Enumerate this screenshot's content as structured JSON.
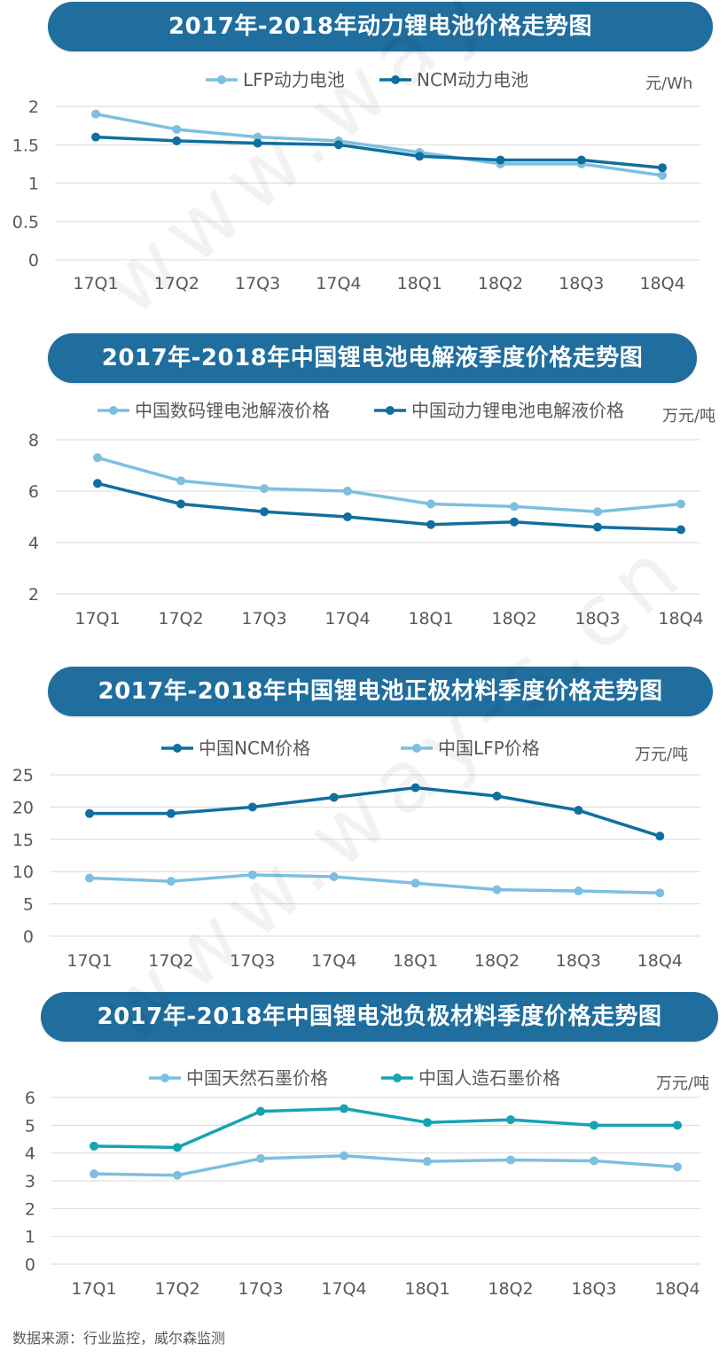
{
  "source": "数据来源：行业监控，威尔森监测",
  "watermark": "www.way-s.cn",
  "colors": {
    "title_bg": "#1f6e9e",
    "light": "#7dbfe0",
    "dark": "#0f6f9f",
    "teal": "#17a3b4",
    "grid": "#d9d9d9"
  },
  "chart_data": [
    {
      "type": "line",
      "title": "2017年-2018年动力锂电池价格走势图",
      "unit": "元/Wh",
      "categories": [
        "17Q1",
        "17Q2",
        "17Q3",
        "17Q4",
        "18Q1",
        "18Q2",
        "18Q3",
        "18Q4"
      ],
      "yticks": [
        "0",
        "0.5",
        "1",
        "1.5",
        "2"
      ],
      "ylim": [
        0,
        2
      ],
      "grid": true,
      "legend_position": "top",
      "series": [
        {
          "name": "LFP动力电池",
          "color": "#7dbfe0",
          "values": [
            1.9,
            1.7,
            1.6,
            1.55,
            1.4,
            1.25,
            1.25,
            1.1
          ]
        },
        {
          "name": "NCM动力电池",
          "color": "#0f6f9f",
          "values": [
            1.6,
            1.55,
            1.52,
            1.5,
            1.35,
            1.3,
            1.3,
            1.2
          ]
        }
      ]
    },
    {
      "type": "line",
      "title": "2017年-2018年中国锂电池电解液季度价格走势图",
      "unit": "万元/吨",
      "categories": [
        "17Q1",
        "17Q2",
        "17Q3",
        "17Q4",
        "18Q1",
        "18Q2",
        "18Q3",
        "18Q4"
      ],
      "yticks": [
        "2",
        "4",
        "6",
        "8"
      ],
      "ylim": [
        2,
        8
      ],
      "grid": true,
      "legend_position": "top",
      "series": [
        {
          "name": "中国数码锂电池解液价格",
          "color": "#7dbfe0",
          "values": [
            7.3,
            6.4,
            6.1,
            6.0,
            5.5,
            5.4,
            5.2,
            5.5
          ]
        },
        {
          "name": "中国动力锂电池电解液价格",
          "color": "#0f6f9f",
          "values": [
            6.3,
            5.5,
            5.2,
            5.0,
            4.7,
            4.8,
            4.6,
            4.5
          ]
        }
      ]
    },
    {
      "type": "line",
      "title": "2017年-2018年中国锂电池正极材料季度价格走势图",
      "unit": "万元/吨",
      "categories": [
        "17Q1",
        "17Q2",
        "17Q3",
        "17Q4",
        "18Q1",
        "18Q2",
        "18Q3",
        "18Q4"
      ],
      "yticks": [
        "0",
        "5",
        "10",
        "15",
        "20",
        "25"
      ],
      "ylim": [
        0,
        25
      ],
      "grid": true,
      "legend_position": "top",
      "series": [
        {
          "name": "中国NCM价格",
          "color": "#0f6f9f",
          "values": [
            19,
            19,
            20,
            21.5,
            23,
            21.7,
            19.5,
            15.5
          ]
        },
        {
          "name": "中国LFP价格",
          "color": "#7dbfe0",
          "values": [
            9,
            8.5,
            9.5,
            9.2,
            8.2,
            7.2,
            7.0,
            6.7
          ]
        }
      ]
    },
    {
      "type": "line",
      "title": "2017年-2018年中国锂电池负极材料季度价格走势图",
      "unit": "万元/吨",
      "categories": [
        "17Q1",
        "17Q2",
        "17Q3",
        "17Q4",
        "18Q1",
        "18Q2",
        "18Q3",
        "18Q4"
      ],
      "yticks": [
        "0",
        "1",
        "2",
        "3",
        "4",
        "5",
        "6"
      ],
      "ylim": [
        0,
        6
      ],
      "grid": true,
      "legend_position": "top",
      "series": [
        {
          "name": "中国天然石墨价格",
          "color": "#7dbfe0",
          "values": [
            3.25,
            3.2,
            3.8,
            3.9,
            3.7,
            3.75,
            3.72,
            3.5
          ]
        },
        {
          "name": "中国人造石墨价格",
          "color": "#17a3b4",
          "values": [
            4.25,
            4.2,
            5.5,
            5.6,
            5.1,
            5.2,
            5.0,
            5.0
          ]
        }
      ]
    }
  ]
}
